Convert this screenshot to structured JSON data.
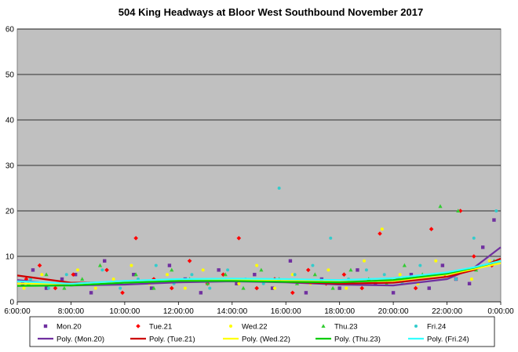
{
  "chart_data": {
    "type": "scatter",
    "title": "504 King Headways at Bloor West Southbound November 2017",
    "xlabel": "",
    "ylabel": "",
    "xlim": [
      "6:00:00",
      "0:00:00"
    ],
    "ylim": [
      0,
      60
    ],
    "x_ticks": [
      "6:00:00",
      "8:00:00",
      "10:00:00",
      "12:00:00",
      "14:00:00",
      "16:00:00",
      "18:00:00",
      "20:00:00",
      "22:00:00",
      "0:00:00"
    ],
    "y_ticks": [
      0,
      10,
      20,
      30,
      40,
      50,
      60
    ],
    "grid": "horizontal",
    "plot_background": "#c0c0c0",
    "legend_position": "bottom",
    "series": [
      {
        "name": "Mon.20",
        "marker": "square",
        "color": "#7030a0",
        "points": [
          [
            "6:12",
            4
          ],
          [
            "6:35",
            7
          ],
          [
            "7:05",
            3
          ],
          [
            "7:40",
            5
          ],
          [
            "8:10",
            6
          ],
          [
            "8:45",
            2
          ],
          [
            "9:15",
            9
          ],
          [
            "9:50",
            4
          ],
          [
            "10:20",
            6
          ],
          [
            "11:00",
            3
          ],
          [
            "11:40",
            8
          ],
          [
            "12:15",
            5
          ],
          [
            "12:50",
            2
          ],
          [
            "13:30",
            7
          ],
          [
            "14:10",
            4
          ],
          [
            "14:50",
            6
          ],
          [
            "15:30",
            3
          ],
          [
            "16:10",
            9
          ],
          [
            "16:45",
            2
          ],
          [
            "17:20",
            5
          ],
          [
            "18:00",
            3
          ],
          [
            "18:40",
            7
          ],
          [
            "19:20",
            4
          ],
          [
            "20:00",
            2
          ],
          [
            "20:40",
            6
          ],
          [
            "21:20",
            3
          ],
          [
            "21:50",
            8
          ],
          [
            "22:20",
            5
          ],
          [
            "22:50",
            4
          ],
          [
            "23:20",
            12
          ],
          [
            "23:45",
            18
          ]
        ],
        "trendline": {
          "name": "Poly. (Mon.20)",
          "color": "#7030a0",
          "values": [
            [
              "6:00",
              4.8
            ],
            [
              "8:00",
              3.6
            ],
            [
              "10:00",
              3.8
            ],
            [
              "12:00",
              4.3
            ],
            [
              "14:00",
              4.5
            ],
            [
              "16:00",
              4.3
            ],
            [
              "18:00",
              3.8
            ],
            [
              "20:00",
              3.6
            ],
            [
              "22:00",
              5.0
            ],
            [
              "23:00",
              7.5
            ],
            [
              "0:00",
              12
            ]
          ]
        }
      },
      {
        "name": "Tue.21",
        "marker": "diamond",
        "color": "#ff0000",
        "points": [
          [
            "6:20",
            5
          ],
          [
            "6:50",
            8
          ],
          [
            "7:25",
            3
          ],
          [
            "8:05",
            6
          ],
          [
            "8:40",
            4
          ],
          [
            "9:20",
            7
          ],
          [
            "9:55",
            2
          ],
          [
            "10:25",
            14
          ],
          [
            "11:05",
            5
          ],
          [
            "11:45",
            3
          ],
          [
            "12:25",
            9
          ],
          [
            "13:05",
            4
          ],
          [
            "13:40",
            6
          ],
          [
            "14:15",
            14
          ],
          [
            "14:55",
            3
          ],
          [
            "15:35",
            5
          ],
          [
            "16:15",
            2
          ],
          [
            "16:50",
            7
          ],
          [
            "17:30",
            4
          ],
          [
            "18:10",
            6
          ],
          [
            "18:50",
            3
          ],
          [
            "19:30",
            15
          ],
          [
            "20:10",
            5
          ],
          [
            "20:50",
            3
          ],
          [
            "21:25",
            16
          ],
          [
            "21:55",
            6
          ],
          [
            "22:30",
            20
          ],
          [
            "23:00",
            10
          ],
          [
            "23:40",
            8
          ]
        ],
        "trendline": {
          "name": "Poly. (Tue.21)",
          "color": "#cc0000",
          "values": [
            [
              "6:00",
              5.8
            ],
            [
              "8:00",
              4.2
            ],
            [
              "10:00",
              4.3
            ],
            [
              "12:00",
              4.6
            ],
            [
              "14:00",
              4.7
            ],
            [
              "16:00",
              4.4
            ],
            [
              "18:00",
              4.0
            ],
            [
              "20:00",
              4.2
            ],
            [
              "22:00",
              5.5
            ],
            [
              "23:00",
              7.0
            ],
            [
              "0:00",
              9.5
            ]
          ]
        }
      },
      {
        "name": "Wed.22",
        "marker": "circle",
        "color": "#ffff00",
        "points": [
          [
            "6:15",
            3
          ],
          [
            "6:55",
            6
          ],
          [
            "7:35",
            4
          ],
          [
            "8:15",
            7
          ],
          [
            "8:55",
            3
          ],
          [
            "9:35",
            5
          ],
          [
            "10:15",
            8
          ],
          [
            "10:55",
            4
          ],
          [
            "11:35",
            6
          ],
          [
            "12:15",
            3
          ],
          [
            "12:55",
            7
          ],
          [
            "13:35",
            5
          ],
          [
            "14:15",
            4
          ],
          [
            "14:55",
            8
          ],
          [
            "15:35",
            3
          ],
          [
            "16:15",
            6
          ],
          [
            "16:55",
            4
          ],
          [
            "17:35",
            7
          ],
          [
            "18:15",
            3
          ],
          [
            "18:55",
            9
          ],
          [
            "19:35",
            16
          ],
          [
            "20:15",
            6
          ],
          [
            "20:55",
            4
          ],
          [
            "21:35",
            9
          ],
          [
            "22:15",
            6
          ],
          [
            "22:55",
            5
          ],
          [
            "23:35",
            9
          ]
        ],
        "trendline": {
          "name": "Poly. (Wed.22)",
          "color": "#ffff00",
          "values": [
            [
              "6:00",
              4.0
            ],
            [
              "8:00",
              4.0
            ],
            [
              "10:00",
              4.4
            ],
            [
              "12:00",
              4.7
            ],
            [
              "14:00",
              4.8
            ],
            [
              "16:00",
              4.6
            ],
            [
              "18:00",
              4.4
            ],
            [
              "20:00",
              4.6
            ],
            [
              "22:00",
              6.0
            ],
            [
              "23:00",
              7.2
            ],
            [
              "0:00",
              8.5
            ]
          ]
        }
      },
      {
        "name": "Thu.23",
        "marker": "triangle",
        "color": "#33cc33",
        "points": [
          [
            "6:25",
            4
          ],
          [
            "7:05",
            6
          ],
          [
            "7:45",
            3
          ],
          [
            "8:25",
            5
          ],
          [
            "9:05",
            8
          ],
          [
            "9:45",
            4
          ],
          [
            "10:25",
            6
          ],
          [
            "11:05",
            3
          ],
          [
            "11:45",
            7
          ],
          [
            "12:25",
            5
          ],
          [
            "13:05",
            4
          ],
          [
            "13:45",
            6
          ],
          [
            "14:25",
            3
          ],
          [
            "15:05",
            7
          ],
          [
            "15:45",
            5
          ],
          [
            "16:25",
            4
          ],
          [
            "17:05",
            6
          ],
          [
            "17:45",
            3
          ],
          [
            "18:25",
            7
          ],
          [
            "19:05",
            5
          ],
          [
            "19:45",
            4
          ],
          [
            "20:25",
            8
          ],
          [
            "21:05",
            6
          ],
          [
            "21:45",
            21
          ],
          [
            "22:25",
            20
          ],
          [
            "23:05",
            7
          ],
          [
            "23:45",
            9
          ]
        ],
        "trendline": {
          "name": "Poly. (Thu.23)",
          "color": "#00cc00",
          "values": [
            [
              "6:00",
              3.5
            ],
            [
              "8:00",
              3.6
            ],
            [
              "10:00",
              4.2
            ],
            [
              "12:00",
              4.6
            ],
            [
              "14:00",
              4.6
            ],
            [
              "16:00",
              4.4
            ],
            [
              "18:00",
              4.3
            ],
            [
              "20:00",
              4.8
            ],
            [
              "22:00",
              6.2
            ],
            [
              "23:00",
              7.5
            ],
            [
              "0:00",
              9.0
            ]
          ]
        }
      },
      {
        "name": "Fri.24",
        "marker": "circle",
        "color": "#33cccc",
        "points": [
          [
            "6:30",
            5
          ],
          [
            "7:10",
            3
          ],
          [
            "7:50",
            6
          ],
          [
            "8:30",
            4
          ],
          [
            "9:10",
            7
          ],
          [
            "9:50",
            3
          ],
          [
            "10:30",
            5
          ],
          [
            "11:10",
            8
          ],
          [
            "11:50",
            4
          ],
          [
            "12:30",
            6
          ],
          [
            "13:10",
            3
          ],
          [
            "13:50",
            7
          ],
          [
            "14:30",
            5
          ],
          [
            "15:10",
            4
          ],
          [
            "15:45",
            25
          ],
          [
            "16:20",
            6
          ],
          [
            "17:00",
            8
          ],
          [
            "17:40",
            14
          ],
          [
            "18:20",
            5
          ],
          [
            "19:00",
            7
          ],
          [
            "19:40",
            6
          ],
          [
            "20:20",
            4
          ],
          [
            "21:00",
            8
          ],
          [
            "21:40",
            6
          ],
          [
            "22:20",
            5
          ],
          [
            "23:00",
            14
          ],
          [
            "23:50",
            20
          ]
        ],
        "trendline": {
          "name": "Poly. (Fri.24)",
          "color": "#33ffff",
          "values": [
            [
              "6:00",
              4.5
            ],
            [
              "8:00",
              4.0
            ],
            [
              "10:00",
              4.6
            ],
            [
              "12:00",
              5.0
            ],
            [
              "14:00",
              5.1
            ],
            [
              "16:00",
              5.0
            ],
            [
              "18:00",
              4.8
            ],
            [
              "20:00",
              5.2
            ],
            [
              "22:00",
              6.5
            ],
            [
              "23:00",
              7.6
            ],
            [
              "0:00",
              9.0
            ]
          ]
        }
      }
    ]
  }
}
